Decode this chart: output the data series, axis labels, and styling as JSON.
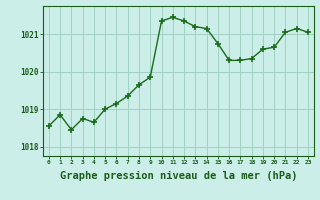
{
  "x": [
    0,
    1,
    2,
    3,
    4,
    5,
    6,
    7,
    8,
    9,
    10,
    11,
    12,
    13,
    14,
    15,
    16,
    17,
    18,
    19,
    20,
    21,
    22,
    23
  ],
  "y": [
    1018.55,
    1018.85,
    1018.45,
    1018.75,
    1018.65,
    1019.0,
    1019.15,
    1019.35,
    1019.65,
    1019.85,
    1021.35,
    1021.45,
    1021.35,
    1021.2,
    1021.15,
    1020.75,
    1020.3,
    1020.3,
    1020.35,
    1020.6,
    1020.65,
    1021.05,
    1021.15,
    1021.05
  ],
  "line_color": "#1a6b1a",
  "marker": "+",
  "markersize": 4,
  "markeredgewidth": 1.2,
  "linewidth": 1.0,
  "linestyle": "-",
  "bg_color": "#cceee8",
  "grid_color": "#99ccbb",
  "ylabel_ticks": [
    1018,
    1019,
    1020,
    1021
  ],
  "xlabel": "Graphe pression niveau de la mer (hPa)",
  "xlabel_fontsize": 7.5,
  "xlabel_bold": true,
  "tick_label_color": "#1a5c1a",
  "xlim": [
    -0.5,
    23.5
  ],
  "ylim": [
    1017.75,
    1021.75
  ]
}
